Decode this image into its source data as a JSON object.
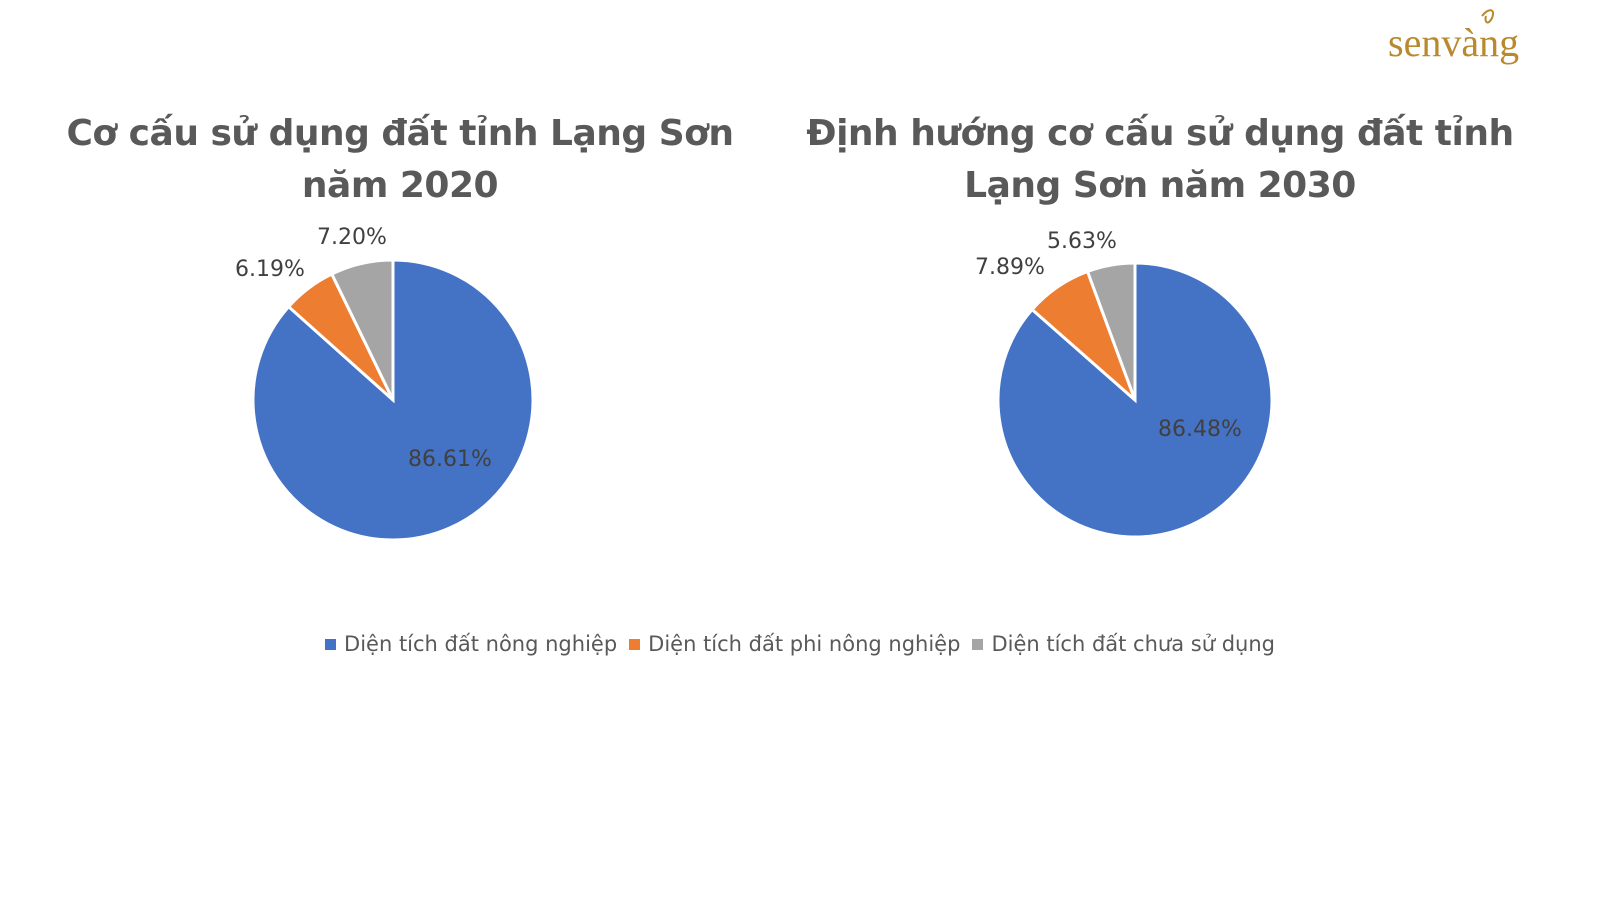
{
  "logo": {
    "text": "senvàng",
    "color": "#b8892d"
  },
  "legend": [
    {
      "label": "Diện tích đất nông nghiệp",
      "color": "#4472c4"
    },
    {
      "label": "Diện tích đất phi nông nghiệp",
      "color": "#ed7d31"
    },
    {
      "label": "Diện tích đất chưa sử dụng",
      "color": "#a5a5a5"
    }
  ],
  "chart_data": [
    {
      "type": "pie",
      "title": "Cơ cấu sử dụng đất tỉnh Lạng Sơn năm 2020",
      "categories": [
        "Diện tích đất nông nghiệp",
        "Diện tích đất phi nông nghiệp",
        "Diện tích đất chưa sử dụng"
      ],
      "values": [
        86.61,
        6.19,
        7.2
      ],
      "labels": [
        "86.61%",
        "6.19%",
        "7.20%"
      ],
      "colors": [
        "#4472c4",
        "#ed7d31",
        "#a5a5a5"
      ],
      "legend_position": "bottom"
    },
    {
      "type": "pie",
      "title": "Định hướng cơ cấu sử dụng đất tỉnh Lạng Sơn năm 2030",
      "categories": [
        "Diện tích đất nông nghiệp",
        "Diện tích đất phi nông nghiệp",
        "Diện tích đất chưa sử dụng"
      ],
      "values": [
        86.48,
        7.89,
        5.63
      ],
      "labels": [
        "86.48%",
        "7.89%",
        "5.63%"
      ],
      "colors": [
        "#4472c4",
        "#ed7d31",
        "#a5a5a5"
      ],
      "legend_position": "bottom"
    }
  ]
}
